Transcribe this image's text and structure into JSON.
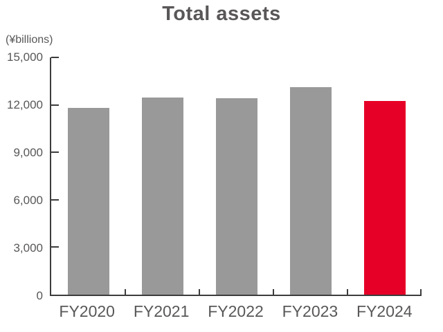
{
  "chart_data": {
    "type": "bar",
    "title": "Total assets",
    "ylabel": "(¥billions)",
    "xlabel": "",
    "categories": [
      "FY2020",
      "FY2021",
      "FY2022",
      "FY2023",
      "FY2024"
    ],
    "values": [
      11800,
      12450,
      12400,
      13100,
      12250
    ],
    "ylim": [
      0,
      15000
    ],
    "ytick_step": 3000,
    "ytick_labels": [
      "0",
      "3,000",
      "6,000",
      "9,000",
      "12,000",
      "15,000"
    ],
    "grid": false,
    "legend": "none",
    "colors": {
      "default_bar": "#999999",
      "highlight_bar": "#e60027",
      "highlight_index": 4,
      "axis": "#3c3c3c",
      "text": "#595757"
    }
  }
}
